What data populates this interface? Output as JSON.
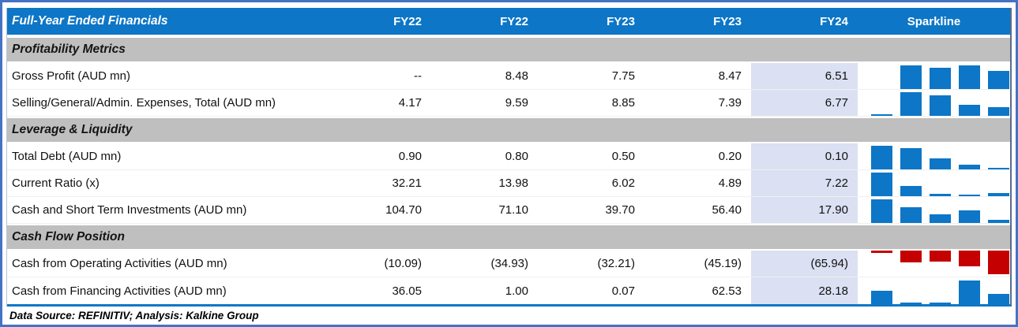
{
  "header": {
    "title": "Full-Year Ended Financials",
    "columns": [
      "FY22",
      "FY22",
      "FY23",
      "FY23",
      "FY24"
    ],
    "sparkline_label": "Sparkline"
  },
  "sections": [
    {
      "title": "Profitability Metrics",
      "rows": [
        {
          "label": "Gross Profit (AUD mn)",
          "values": [
            "--",
            "8.48",
            "7.75",
            "8.47",
            "6.51"
          ],
          "spark": {
            "color": "blue",
            "anchor": "bottom",
            "heights": [
              0,
              1.0,
              0.91,
              1.0,
              0.77
            ]
          }
        },
        {
          "label": "Selling/General/Admin. Expenses, Total (AUD mn)",
          "values": [
            "4.17",
            "9.59",
            "8.85",
            "7.39",
            "6.77"
          ],
          "spark": {
            "color": "blue",
            "anchor": "bottom",
            "heights": [
              0.07,
              1.0,
              0.88,
              0.45,
              0.38
            ]
          }
        }
      ]
    },
    {
      "title": "Leverage & Liquidity",
      "rows": [
        {
          "label": "Total Debt (AUD mn)",
          "values": [
            "0.90",
            "0.80",
            "0.50",
            "0.20",
            "0.10"
          ],
          "spark": {
            "color": "blue",
            "anchor": "bottom",
            "heights": [
              1.0,
              0.89,
              0.47,
              0.19,
              0.08
            ]
          }
        },
        {
          "label": "Current Ratio (x)",
          "values": [
            "32.21",
            "13.98",
            "6.02",
            "4.89",
            "7.22"
          ],
          "spark": {
            "color": "blue",
            "anchor": "bottom",
            "heights": [
              1.0,
              0.42,
              0.1,
              0.08,
              0.13
            ]
          }
        },
        {
          "label": "Cash and Short Term Investments (AUD mn)",
          "values": [
            "104.70",
            "71.10",
            "39.70",
            "56.40",
            "17.90"
          ],
          "spark": {
            "color": "blue",
            "anchor": "bottom",
            "heights": [
              1.0,
              0.68,
              0.38,
              0.54,
              0.12
            ]
          }
        }
      ]
    },
    {
      "title": "Cash Flow Position",
      "rows": [
        {
          "label": "Cash from Operating Activities (AUD mn)",
          "values": [
            "(10.09)",
            "(34.93)",
            "(32.21)",
            "(45.19)",
            "(65.94)"
          ],
          "spark": {
            "color": "red",
            "anchor": "top",
            "heights": [
              0.1,
              0.5,
              0.45,
              0.67,
              1.0
            ]
          }
        },
        {
          "label": "Cash from Financing Activities (AUD mn)",
          "values": [
            "36.05",
            "1.00",
            "0.07",
            "62.53",
            "28.18"
          ],
          "spark": {
            "color": "blue",
            "anchor": "bottom",
            "heights": [
              0.55,
              0.06,
              0.04,
              1.0,
              0.42
            ]
          }
        }
      ]
    }
  ],
  "footer": {
    "text": "Data Source: REFINITIV; Analysis: Kalkine Group"
  },
  "colors": {
    "header_blue": "#0d76c6",
    "section_gray": "#BFBFBF",
    "fy24_highlight": "#DBE0F2",
    "spark_blue": "#0d76c6",
    "spark_red": "#C40000",
    "outer_border": "#4472C4"
  },
  "chart_data": {
    "type": "table",
    "title": "Full-Year Ended Financials",
    "columns": [
      "Metric",
      "FY22",
      "FY22",
      "FY23",
      "FY23",
      "FY24"
    ],
    "legend_note": "Sparkline column shows mini column charts per row; negative values drawn in red hanging from top",
    "rows": [
      {
        "section": "Profitability Metrics",
        "metric": "Gross Profit (AUD mn)",
        "values": [
          null,
          8.48,
          7.75,
          8.47,
          6.51
        ]
      },
      {
        "section": "Profitability Metrics",
        "metric": "Selling/General/Admin. Expenses, Total (AUD mn)",
        "values": [
          4.17,
          9.59,
          8.85,
          7.39,
          6.77
        ]
      },
      {
        "section": "Leverage & Liquidity",
        "metric": "Total Debt (AUD mn)",
        "values": [
          0.9,
          0.8,
          0.5,
          0.2,
          0.1
        ]
      },
      {
        "section": "Leverage & Liquidity",
        "metric": "Current Ratio (x)",
        "values": [
          32.21,
          13.98,
          6.02,
          4.89,
          7.22
        ]
      },
      {
        "section": "Leverage & Liquidity",
        "metric": "Cash and Short Term Investments (AUD mn)",
        "values": [
          104.7,
          71.1,
          39.7,
          56.4,
          17.9
        ]
      },
      {
        "section": "Cash Flow Position",
        "metric": "Cash from Operating Activities (AUD mn)",
        "values": [
          -10.09,
          -34.93,
          -32.21,
          -45.19,
          -65.94
        ]
      },
      {
        "section": "Cash Flow Position",
        "metric": "Cash from Financing Activities (AUD mn)",
        "values": [
          36.05,
          1.0,
          0.07,
          62.53,
          28.18
        ]
      }
    ]
  }
}
